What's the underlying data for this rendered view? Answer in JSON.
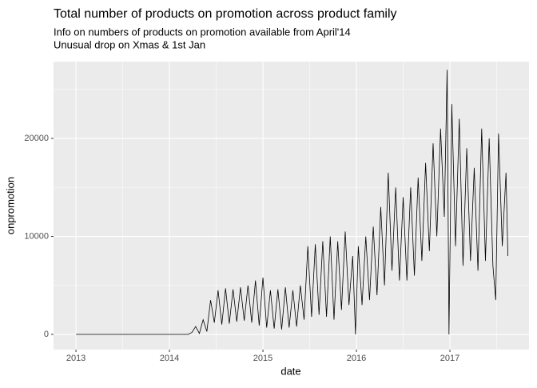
{
  "chart_data": {
    "type": "line",
    "title": "Total number of products on promotion across product family",
    "subtitle": [
      "Info on numbers of products on promotion available from April'14",
      "Unusual drop on Xmas & 1st Jan"
    ],
    "xlabel": "date",
    "ylabel": "onpromotion",
    "xlim": [
      2012.76,
      2017.846
    ],
    "xticks": [
      2013,
      2014,
      2015,
      2016,
      2017
    ],
    "ylim": [
      -1550,
      27840
    ],
    "yticks": [
      0,
      10000,
      20000
    ],
    "grid": true,
    "color": "#000000",
    "x": [
      2013,
      2014.2,
      2014.24,
      2014.28,
      2014.32,
      2014.36,
      2014.4,
      2014.44,
      2014.48,
      2014.52,
      2014.56,
      2014.6,
      2014.64,
      2014.68,
      2014.72,
      2014.76,
      2014.8,
      2014.84,
      2014.88,
      2014.92,
      2014.96,
      2015.0,
      2015.04,
      2015.08,
      2015.12,
      2015.16,
      2015.2,
      2015.24,
      2015.28,
      2015.32,
      2015.36,
      2015.4,
      2015.44,
      2015.48,
      2015.52,
      2015.56,
      2015.6,
      2015.64,
      2015.68,
      2015.72,
      2015.76,
      2015.8,
      2015.84,
      2015.88,
      2015.92,
      2015.96,
      2015.99,
      2016.02,
      2016.06,
      2016.1,
      2016.14,
      2016.18,
      2016.22,
      2016.26,
      2016.3,
      2016.34,
      2016.38,
      2016.42,
      2016.46,
      2016.5,
      2016.54,
      2016.58,
      2016.62,
      2016.66,
      2016.7,
      2016.74,
      2016.78,
      2016.82,
      2016.86,
      2016.9,
      2016.94,
      2016.97,
      2016.99,
      2017.02,
      2017.06,
      2017.1,
      2017.14,
      2017.18,
      2017.22,
      2017.26,
      2017.3,
      2017.34,
      2017.38,
      2017.42,
      2017.46,
      2017.49,
      2017.52,
      2017.56,
      2017.6,
      2017.62
    ],
    "values": [
      0,
      0,
      200,
      800,
      100,
      1500,
      300,
      3500,
      1200,
      4500,
      1000,
      4700,
      1100,
      4600,
      1300,
      4800,
      1400,
      5000,
      1200,
      5500,
      900,
      5800,
      700,
      4500,
      600,
      4600,
      500,
      4800,
      700,
      4500,
      800,
      5000,
      1500,
      9000,
      1800,
      9200,
      2000,
      9500,
      1800,
      10000,
      1500,
      9500,
      2500,
      10500,
      3000,
      8000,
      0,
      9000,
      3000,
      10000,
      3500,
      11000,
      4000,
      13000,
      5000,
      16500,
      6500,
      15000,
      5500,
      14000,
      5500,
      15000,
      6000,
      16000,
      7500,
      17500,
      8500,
      19500,
      10000,
      21000,
      12000,
      27000,
      0,
      23500,
      9000,
      22000,
      7000,
      19000,
      7500,
      17000,
      6500,
      21000,
      7500,
      20000,
      7000,
      3500,
      20500,
      9000,
      16500,
      8000
    ]
  }
}
